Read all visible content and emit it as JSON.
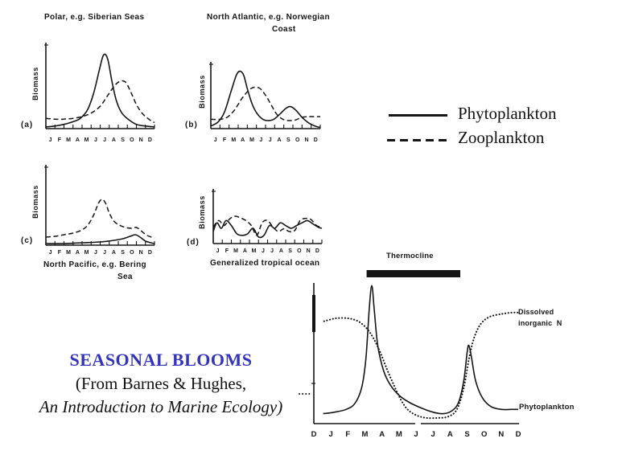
{
  "colors": {
    "ink": "#151515",
    "title_blue": "#3333bb"
  },
  "legend": {
    "phytoplankton_label": "Phytoplankton",
    "zooplankton_label": "Zooplankton"
  },
  "caption": {
    "line1": "SEASONAL BLOOMS",
    "line2": "(From Barnes & Hughes,",
    "line3": "An Introduction to Marine Ecology)"
  },
  "chart_data": [
    {
      "id": "a",
      "type": "line",
      "panel_label": "(a)",
      "title_line1": "Polar, e.g. Siberian Seas",
      "title_line2": "",
      "ylabel": "Biomass",
      "x_ticks": [
        "J",
        "F",
        "M",
        "A",
        "M",
        "J",
        "J",
        "A",
        "S",
        "O",
        "N",
        "D"
      ],
      "series": [
        {
          "name": "Phytoplankton",
          "style": "solid",
          "points": [
            [
              0,
              0.02
            ],
            [
              1,
              0.03
            ],
            [
              2,
              0.05
            ],
            [
              3,
              0.08
            ],
            [
              3.8,
              0.12
            ],
            [
              4.6,
              0.22
            ],
            [
              5.3,
              0.42
            ],
            [
              5.9,
              0.68
            ],
            [
              6.3,
              0.84
            ],
            [
              6.6,
              0.86
            ],
            [
              6.9,
              0.78
            ],
            [
              7.3,
              0.55
            ],
            [
              7.8,
              0.32
            ],
            [
              8.4,
              0.18
            ],
            [
              9.2,
              0.1
            ],
            [
              10,
              0.05
            ],
            [
              11,
              0.03
            ],
            [
              12,
              0.02
            ]
          ]
        },
        {
          "name": "Zooplankton",
          "style": "dashed",
          "points": [
            [
              0,
              0.12
            ],
            [
              1,
              0.11
            ],
            [
              2,
              0.11
            ],
            [
              3,
              0.12
            ],
            [
              4,
              0.14
            ],
            [
              5,
              0.18
            ],
            [
              6,
              0.26
            ],
            [
              6.8,
              0.38
            ],
            [
              7.6,
              0.5
            ],
            [
              8.2,
              0.55
            ],
            [
              8.8,
              0.54
            ],
            [
              9.4,
              0.42
            ],
            [
              10,
              0.28
            ],
            [
              10.7,
              0.17
            ],
            [
              11.5,
              0.1
            ],
            [
              12,
              0.07
            ]
          ]
        }
      ]
    },
    {
      "id": "b",
      "type": "line",
      "panel_label": "(b)",
      "title_line1": "North Atlantic, e.g. Norwegian",
      "title_line2": "Coast",
      "ylabel": "Biomass",
      "x_ticks": [
        "J",
        "F",
        "M",
        "A",
        "M",
        "J",
        "J",
        "A",
        "S",
        "O",
        "N",
        "D"
      ],
      "series": [
        {
          "name": "Phytoplankton",
          "style": "solid",
          "points": [
            [
              0,
              0.04
            ],
            [
              0.8,
              0.1
            ],
            [
              1.5,
              0.25
            ],
            [
              2.2,
              0.55
            ],
            [
              2.8,
              0.8
            ],
            [
              3.2,
              0.86
            ],
            [
              3.6,
              0.8
            ],
            [
              4,
              0.6
            ],
            [
              4.5,
              0.38
            ],
            [
              5,
              0.24
            ],
            [
              5.6,
              0.15
            ],
            [
              6.2,
              0.12
            ],
            [
              6.9,
              0.14
            ],
            [
              7.6,
              0.22
            ],
            [
              8.2,
              0.3
            ],
            [
              8.7,
              0.33
            ],
            [
              9.3,
              0.28
            ],
            [
              10,
              0.17
            ],
            [
              10.8,
              0.08
            ],
            [
              11.6,
              0.03
            ],
            [
              12,
              0.02
            ]
          ]
        },
        {
          "name": "Zooplankton",
          "style": "dashed",
          "points": [
            [
              0,
              0.14
            ],
            [
              1,
              0.14
            ],
            [
              1.8,
              0.17
            ],
            [
              2.6,
              0.28
            ],
            [
              3.4,
              0.45
            ],
            [
              4.2,
              0.58
            ],
            [
              4.8,
              0.62
            ],
            [
              5.4,
              0.6
            ],
            [
              6,
              0.5
            ],
            [
              6.6,
              0.36
            ],
            [
              7.2,
              0.22
            ],
            [
              7.9,
              0.14
            ],
            [
              8.6,
              0.12
            ],
            [
              9.3,
              0.13
            ],
            [
              10,
              0.17
            ],
            [
              10.8,
              0.18
            ],
            [
              11.4,
              0.18
            ],
            [
              12,
              0.18
            ]
          ]
        }
      ]
    },
    {
      "id": "c",
      "type": "line",
      "panel_label": "(c)",
      "title_line1": "North Pacific, e.g. Bering",
      "title_line2": "Sea",
      "ylabel": "Biomass",
      "x_ticks": [
        "J",
        "F",
        "M",
        "A",
        "M",
        "J",
        "J",
        "A",
        "S",
        "O",
        "N",
        "D"
      ],
      "series": [
        {
          "name": "Phytoplankton",
          "style": "solid",
          "points": [
            [
              0,
              0.02
            ],
            [
              2,
              0.02
            ],
            [
              4,
              0.03
            ],
            [
              6,
              0.04
            ],
            [
              7.5,
              0.06
            ],
            [
              8.5,
              0.08
            ],
            [
              9.3,
              0.11
            ],
            [
              9.9,
              0.13
            ],
            [
              10.4,
              0.1
            ],
            [
              11,
              0.05
            ],
            [
              11.6,
              0.03
            ],
            [
              12,
              0.02
            ]
          ]
        },
        {
          "name": "Zooplankton",
          "style": "dashed",
          "points": [
            [
              0,
              0.1
            ],
            [
              1,
              0.11
            ],
            [
              2,
              0.13
            ],
            [
              3,
              0.15
            ],
            [
              4,
              0.19
            ],
            [
              4.7,
              0.26
            ],
            [
              5.3,
              0.38
            ],
            [
              5.8,
              0.52
            ],
            [
              6.2,
              0.57
            ],
            [
              6.6,
              0.52
            ],
            [
              7,
              0.4
            ],
            [
              7.5,
              0.3
            ],
            [
              8.1,
              0.25
            ],
            [
              8.8,
              0.22
            ],
            [
              9.5,
              0.21
            ],
            [
              10,
              0.22
            ],
            [
              10.5,
              0.18
            ],
            [
              11.2,
              0.12
            ],
            [
              12,
              0.09
            ]
          ]
        }
      ]
    },
    {
      "id": "d",
      "type": "line",
      "panel_label": "(d)",
      "title_line1": "Generalized tropical ocean",
      "title_line2": "",
      "ylabel": "Biomass",
      "x_ticks": [
        "J",
        "F",
        "M",
        "A",
        "M",
        "J",
        "J",
        "A",
        "S",
        "O",
        "N",
        "D"
      ],
      "series": [
        {
          "name": "Phytoplankton",
          "style": "solid",
          "points": [
            [
              0,
              0.22
            ],
            [
              0.4,
              0.38
            ],
            [
              0.9,
              0.28
            ],
            [
              1.4,
              0.42
            ],
            [
              2,
              0.33
            ],
            [
              2.6,
              0.18
            ],
            [
              3.2,
              0.15
            ],
            [
              3.8,
              0.18
            ],
            [
              4.4,
              0.28
            ],
            [
              5,
              0.12
            ],
            [
              5.6,
              0.15
            ],
            [
              6.2,
              0.33
            ],
            [
              6.8,
              0.28
            ],
            [
              7.4,
              0.38
            ],
            [
              8,
              0.33
            ],
            [
              8.6,
              0.28
            ],
            [
              9.2,
              0.33
            ],
            [
              9.8,
              0.38
            ],
            [
              10.4,
              0.42
            ],
            [
              11,
              0.36
            ],
            [
              11.6,
              0.3
            ],
            [
              12,
              0.28
            ]
          ]
        },
        {
          "name": "Zooplankton",
          "style": "dashed",
          "points": [
            [
              0,
              0.3
            ],
            [
              0.6,
              0.42
            ],
            [
              1.2,
              0.33
            ],
            [
              1.8,
              0.45
            ],
            [
              2.4,
              0.5
            ],
            [
              3,
              0.47
            ],
            [
              3.6,
              0.42
            ],
            [
              4.2,
              0.33
            ],
            [
              4.8,
              0.15
            ],
            [
              5.4,
              0.38
            ],
            [
              6,
              0.42
            ],
            [
              6.6,
              0.3
            ],
            [
              7.2,
              0.22
            ],
            [
              7.8,
              0.27
            ],
            [
              8.4,
              0.22
            ],
            [
              9,
              0.24
            ],
            [
              9.6,
              0.42
            ],
            [
              10.2,
              0.46
            ],
            [
              10.8,
              0.44
            ],
            [
              11.4,
              0.33
            ],
            [
              12,
              0.3
            ]
          ]
        }
      ]
    },
    {
      "id": "e",
      "type": "line",
      "x_ticks": [
        "D",
        "J",
        "F",
        "M",
        "A",
        "M",
        "J",
        "J",
        "A",
        "S",
        "O",
        "N",
        "D"
      ],
      "thermocline_span_months": [
        3.1,
        8.6
      ],
      "annotations": {
        "thermocline": "Thermocline",
        "dissolved_line1": "Dissolved",
        "dissolved_line2": "inorganic  N",
        "phytoplankton": "Phytoplankton"
      },
      "series": [
        {
          "name": "Phytoplankton",
          "style": "solid",
          "points": [
            [
              0.55,
              0.07
            ],
            [
              1.2,
              0.08
            ],
            [
              1.9,
              0.1
            ],
            [
              2.4,
              0.14
            ],
            [
              2.8,
              0.25
            ],
            [
              3.05,
              0.45
            ],
            [
              3.25,
              0.8
            ],
            [
              3.4,
              0.97
            ],
            [
              3.55,
              0.8
            ],
            [
              3.75,
              0.55
            ],
            [
              4.1,
              0.37
            ],
            [
              4.5,
              0.27
            ],
            [
              5,
              0.2
            ],
            [
              5.6,
              0.15
            ],
            [
              6.3,
              0.11
            ],
            [
              7,
              0.08
            ],
            [
              7.6,
              0.07
            ],
            [
              8.1,
              0.09
            ],
            [
              8.5,
              0.15
            ],
            [
              8.8,
              0.3
            ],
            [
              9,
              0.5
            ],
            [
              9.1,
              0.55
            ],
            [
              9.25,
              0.47
            ],
            [
              9.5,
              0.3
            ],
            [
              9.9,
              0.18
            ],
            [
              10.4,
              0.12
            ],
            [
              11,
              0.1
            ],
            [
              11.6,
              0.1
            ],
            [
              12,
              0.1
            ]
          ]
        },
        {
          "name": "Dissolved inorganic N",
          "style": "dotted",
          "points": [
            [
              0.6,
              0.72
            ],
            [
              1.3,
              0.74
            ],
            [
              2,
              0.74
            ],
            [
              2.6,
              0.72
            ],
            [
              3.1,
              0.67
            ],
            [
              3.5,
              0.6
            ],
            [
              3.9,
              0.5
            ],
            [
              4.3,
              0.38
            ],
            [
              4.7,
              0.27
            ],
            [
              5.1,
              0.17
            ],
            [
              5.5,
              0.1
            ],
            [
              6,
              0.06
            ],
            [
              6.6,
              0.04
            ],
            [
              7.3,
              0.04
            ],
            [
              7.9,
              0.05
            ],
            [
              8.4,
              0.1
            ],
            [
              8.8,
              0.25
            ],
            [
              9.1,
              0.45
            ],
            [
              9.4,
              0.6
            ],
            [
              9.8,
              0.7
            ],
            [
              10.3,
              0.75
            ],
            [
              11,
              0.77
            ],
            [
              11.6,
              0.78
            ],
            [
              12.1,
              0.78
            ]
          ]
        }
      ]
    }
  ]
}
